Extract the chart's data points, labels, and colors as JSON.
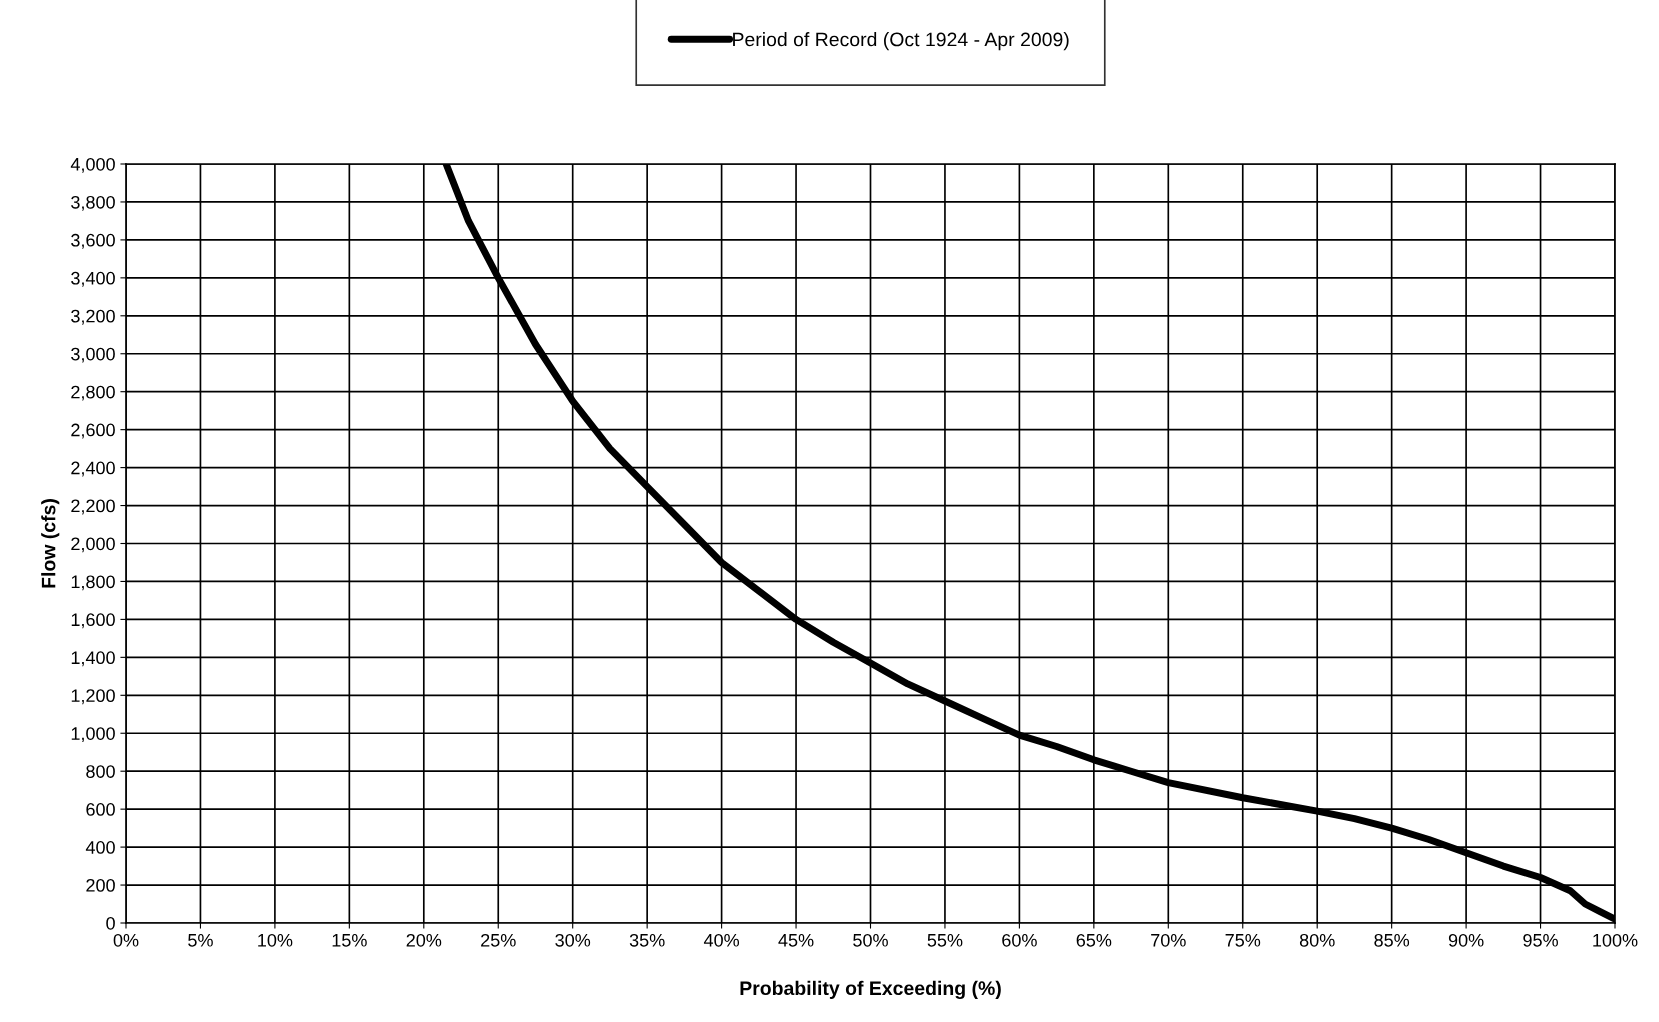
{
  "chart_data": {
    "type": "line",
    "xlabel": "Probability of Exceeding (%)",
    "ylabel": "Flow (cfs)",
    "x": [
      21.5,
      23,
      25,
      27.5,
      30,
      32.5,
      35,
      37.5,
      40,
      42.5,
      45,
      47.5,
      50,
      52.5,
      55,
      57.5,
      60,
      62.5,
      65,
      67.5,
      70,
      75,
      80,
      82.5,
      85,
      87.5,
      90,
      92.5,
      95,
      97,
      98,
      99,
      100
    ],
    "series": [
      {
        "name": "Period of Record (Oct 1924 - Apr 2009)",
        "color": "#000000",
        "values": [
          4000,
          3700,
          3400,
          3050,
          2750,
          2500,
          2300,
          2100,
          1900,
          1750,
          1600,
          1480,
          1370,
          1260,
          1170,
          1080,
          990,
          930,
          860,
          800,
          740,
          660,
          590,
          550,
          500,
          440,
          370,
          300,
          240,
          170,
          100,
          60,
          20
        ]
      }
    ],
    "xlim": [
      0,
      100
    ],
    "xticks": [
      {
        "value": 0,
        "label": "0%"
      },
      {
        "value": 5,
        "label": "5%"
      },
      {
        "value": 10,
        "label": "10%"
      },
      {
        "value": 15,
        "label": "15%"
      },
      {
        "value": 20,
        "label": "20%"
      },
      {
        "value": 25,
        "label": "25%"
      },
      {
        "value": 30,
        "label": "30%"
      },
      {
        "value": 35,
        "label": "35%"
      },
      {
        "value": 40,
        "label": "40%"
      },
      {
        "value": 45,
        "label": "45%"
      },
      {
        "value": 50,
        "label": "50%"
      },
      {
        "value": 55,
        "label": "55%"
      },
      {
        "value": 60,
        "label": "60%"
      },
      {
        "value": 65,
        "label": "65%"
      },
      {
        "value": 70,
        "label": "70%"
      },
      {
        "value": 75,
        "label": "75%"
      },
      {
        "value": 80,
        "label": "80%"
      },
      {
        "value": 85,
        "label": "85%"
      },
      {
        "value": 90,
        "label": "90%"
      },
      {
        "value": 95,
        "label": "95%"
      },
      {
        "value": 100,
        "label": "100%"
      }
    ],
    "ylim": [
      0,
      4000
    ],
    "yticks": [
      0,
      200,
      400,
      600,
      800,
      {
        "value": 1000,
        "label": "1,000"
      },
      {
        "value": 1200,
        "label": "1,200"
      },
      {
        "value": 1400,
        "label": "1,400"
      },
      {
        "value": 1600,
        "label": "1,600"
      },
      {
        "value": 1800,
        "label": "1,800"
      },
      {
        "value": 2000,
        "label": "2,000"
      },
      {
        "value": 2200,
        "label": "2,200"
      },
      {
        "value": 2400,
        "label": "2,400"
      },
      {
        "value": 2600,
        "label": "2,600"
      },
      {
        "value": 2800,
        "label": "2,800"
      },
      {
        "value": 3000,
        "label": "3,000"
      },
      {
        "value": 3200,
        "label": "3,200"
      },
      {
        "value": 3400,
        "label": "3,400"
      },
      {
        "value": 3600,
        "label": "3,600"
      },
      {
        "value": 3800,
        "label": "3,800"
      },
      {
        "value": 4000,
        "label": "4,000"
      }
    ],
    "grid": true,
    "legend": "top",
    "marker": "none",
    "line_style": "solid"
  }
}
